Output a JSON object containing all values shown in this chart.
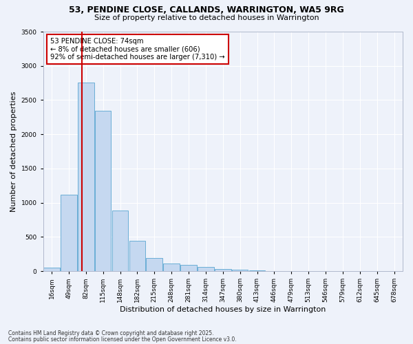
{
  "title1": "53, PENDINE CLOSE, CALLANDS, WARRINGTON, WA5 9RG",
  "title2": "Size of property relative to detached houses in Warrington",
  "xlabel": "Distribution of detached houses by size in Warrington",
  "ylabel": "Number of detached properties",
  "bin_labels": [
    "16sqm",
    "49sqm",
    "82sqm",
    "115sqm",
    "148sqm",
    "182sqm",
    "215sqm",
    "248sqm",
    "281sqm",
    "314sqm",
    "347sqm",
    "380sqm",
    "413sqm",
    "446sqm",
    "479sqm",
    "513sqm",
    "546sqm",
    "579sqm",
    "612sqm",
    "645sqm",
    "678sqm"
  ],
  "bar_heights": [
    50,
    1120,
    2760,
    2340,
    890,
    440,
    190,
    110,
    90,
    65,
    35,
    20,
    8,
    5,
    5,
    3,
    2,
    1,
    0,
    0,
    0
  ],
  "bar_color": "#c5d8f0",
  "bar_edge_color": "#6aaed6",
  "property_bin_index": 1.75,
  "red_line_color": "#cc0000",
  "annotation_text": "53 PENDINE CLOSE: 74sqm\n← 8% of detached houses are smaller (606)\n92% of semi-detached houses are larger (7,310) →",
  "annotation_box_color": "#ffffff",
  "annotation_box_edge": "#cc0000",
  "ylim": [
    0,
    3500
  ],
  "yticks": [
    0,
    500,
    1000,
    1500,
    2000,
    2500,
    3000,
    3500
  ],
  "bg_color": "#eef2fa",
  "grid_color": "#ffffff",
  "footer1": "Contains HM Land Registry data © Crown copyright and database right 2025.",
  "footer2": "Contains public sector information licensed under the Open Government Licence v3.0."
}
